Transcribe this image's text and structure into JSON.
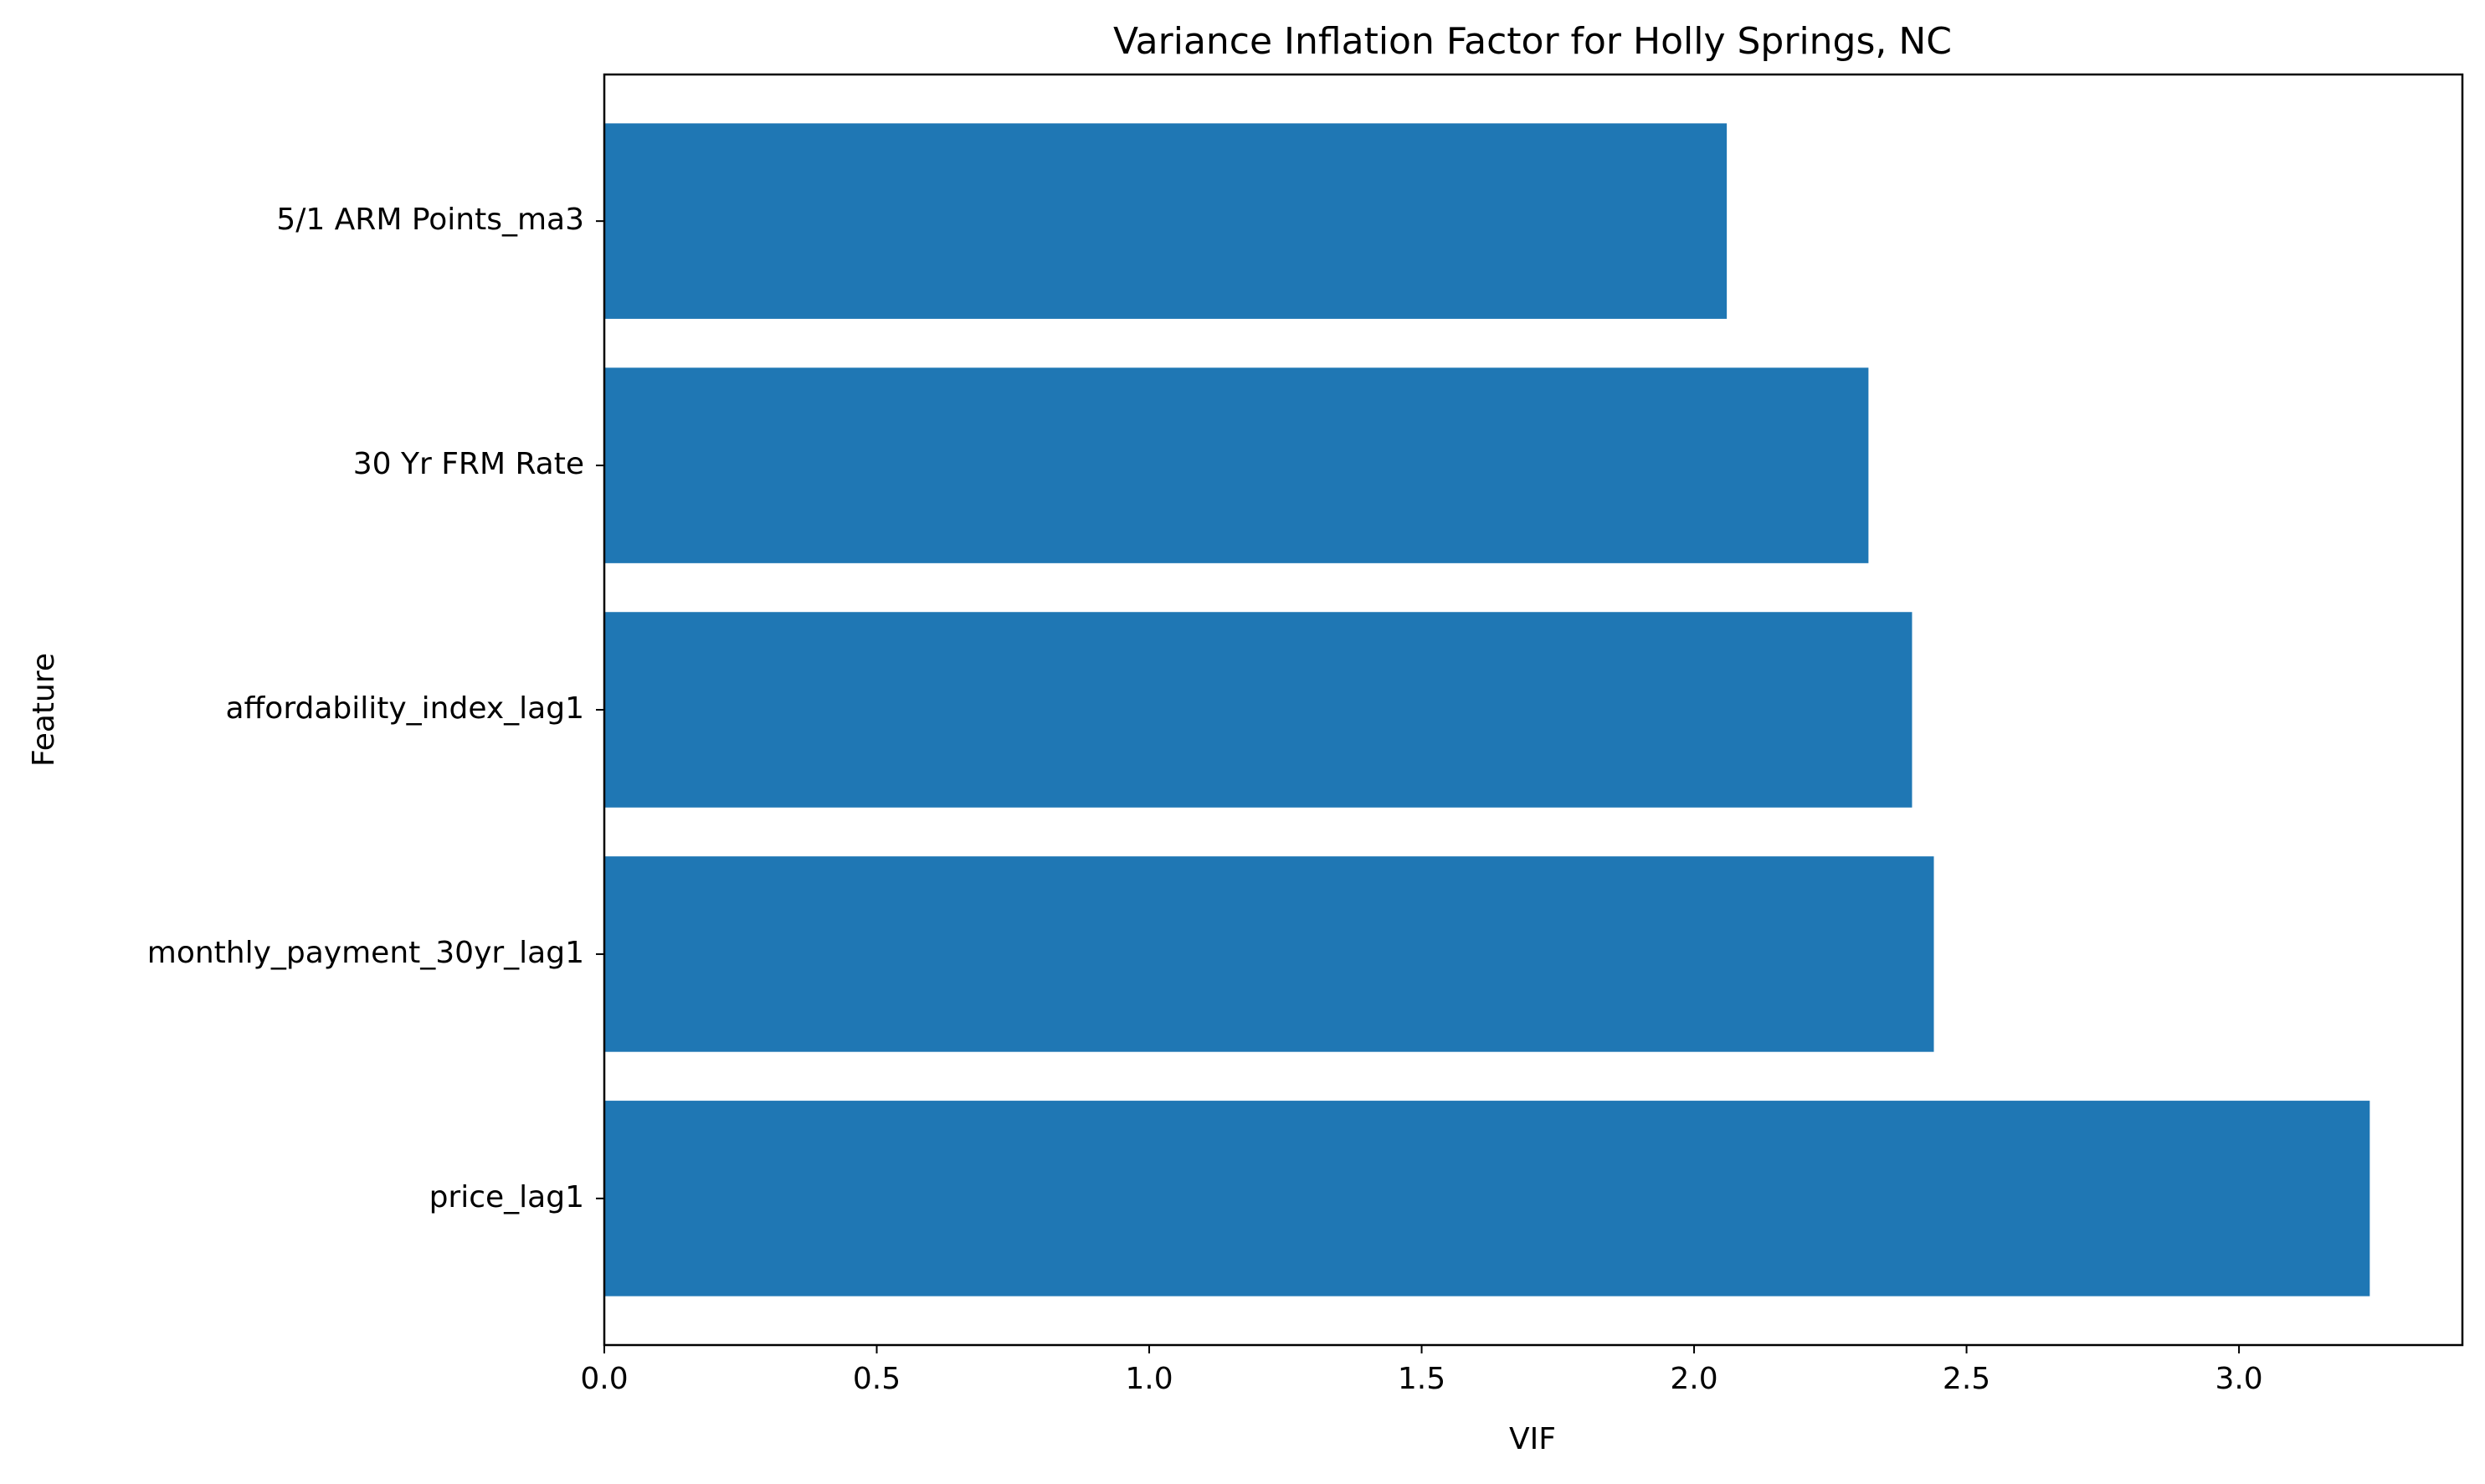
{
  "chart_data": {
    "type": "bar",
    "orientation": "horizontal",
    "title": "Variance Inflation Factor for Holly Springs, NC",
    "xlabel": "VIF",
    "ylabel": "Feature",
    "categories": [
      "price_lag1",
      "monthly_payment_30yr_lag1",
      "affordability_index_lag1",
      "30 Yr FRM Rate",
      "5/1 ARM Points_ma3"
    ],
    "values": [
      3.24,
      2.44,
      2.4,
      2.32,
      2.06
    ],
    "xlim": [
      0,
      3.41
    ],
    "xticks": [
      "0.0",
      "0.5",
      "1.0",
      "1.5",
      "2.0",
      "2.5",
      "3.0"
    ],
    "bar_color": "#1f77b4",
    "grid": false,
    "legend": "none"
  }
}
